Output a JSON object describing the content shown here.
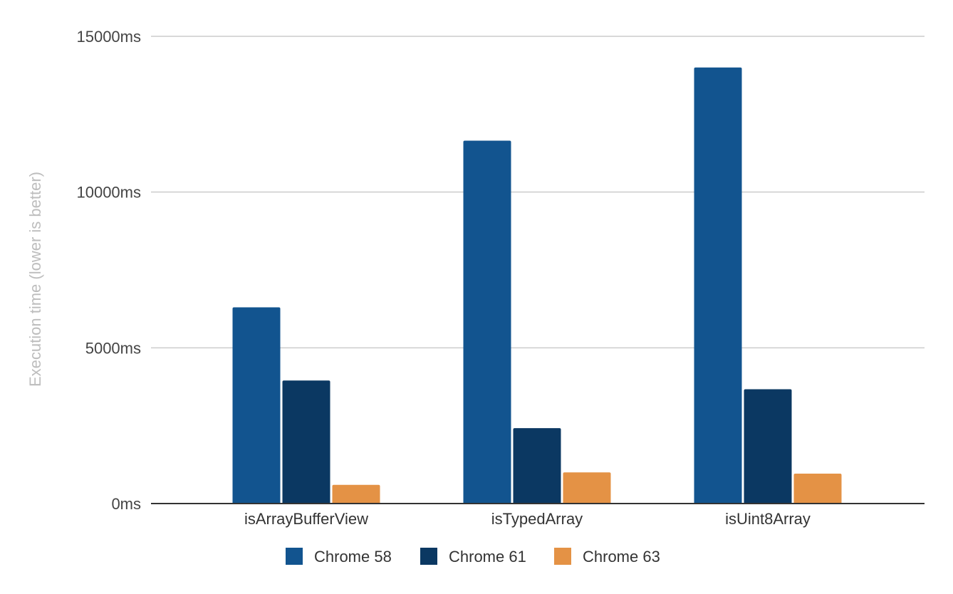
{
  "chart_data": {
    "type": "bar",
    "title": "",
    "xlabel": "",
    "ylabel": "Execution time (lower is better)",
    "categories": [
      "isArrayBufferView",
      "isTypedArray",
      "isUint8Array"
    ],
    "series": [
      {
        "name": "Chrome 58",
        "color": "#12548f",
        "values": [
          6300,
          11650,
          14000
        ]
      },
      {
        "name": "Chrome 61",
        "color": "#0b3862",
        "values": [
          3950,
          2420,
          3670
        ]
      },
      {
        "name": "Chrome 63",
        "color": "#e49245",
        "values": [
          600,
          1000,
          960
        ]
      }
    ],
    "ylim": [
      0,
      15000
    ],
    "yticks": [
      0,
      5000,
      10000,
      15000
    ],
    "ytick_labels": [
      "0ms",
      "5000ms",
      "10000ms",
      "15000ms"
    ],
    "grid": true,
    "legend_position": "bottom"
  }
}
